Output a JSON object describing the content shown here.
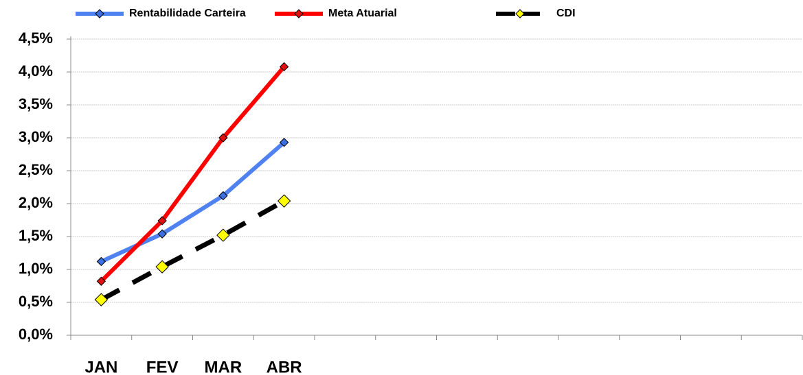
{
  "chart_data": {
    "type": "line",
    "categories": [
      "JAN",
      "FEV",
      "MAR",
      "ABR",
      null,
      null,
      null,
      null,
      null,
      null,
      null,
      null
    ],
    "series": [
      {
        "name": "Rentabilidade Carteira",
        "color": "#4f81f0",
        "marker_color": "#3c6fe0",
        "values": [
          1.12,
          1.54,
          2.12,
          2.93,
          null,
          null,
          null,
          null,
          null,
          null,
          null,
          null
        ]
      },
      {
        "name": "Meta Atuarial",
        "color": "#ff0000",
        "marker_color": "#e01010",
        "values": [
          0.82,
          1.74,
          3.0,
          4.08,
          null,
          null,
          null,
          null,
          null,
          null,
          null,
          null
        ]
      },
      {
        "name": "CDI",
        "color": "#000000",
        "marker_color": "#ffff00",
        "dashed": true,
        "values": [
          0.54,
          1.04,
          1.52,
          2.04,
          null,
          null,
          null,
          null,
          null,
          null,
          null,
          null
        ]
      }
    ],
    "ylim": [
      0,
      4.5
    ],
    "yticks": [
      {
        "value": 0,
        "label": "0,0%"
      },
      {
        "value": 0.5,
        "label": "0,5%"
      },
      {
        "value": 1,
        "label": "1,0%"
      },
      {
        "value": 1.5,
        "label": "1,5%"
      },
      {
        "value": 2,
        "label": "2,0%"
      },
      {
        "value": 2.5,
        "label": "2,5%"
      },
      {
        "value": 3,
        "label": "3,0%"
      },
      {
        "value": 3.5,
        "label": "3,5%"
      },
      {
        "value": 4,
        "label": "4,0%"
      },
      {
        "value": 4.5,
        "label": "4,5%"
      }
    ],
    "grid": true,
    "legend": "top"
  }
}
